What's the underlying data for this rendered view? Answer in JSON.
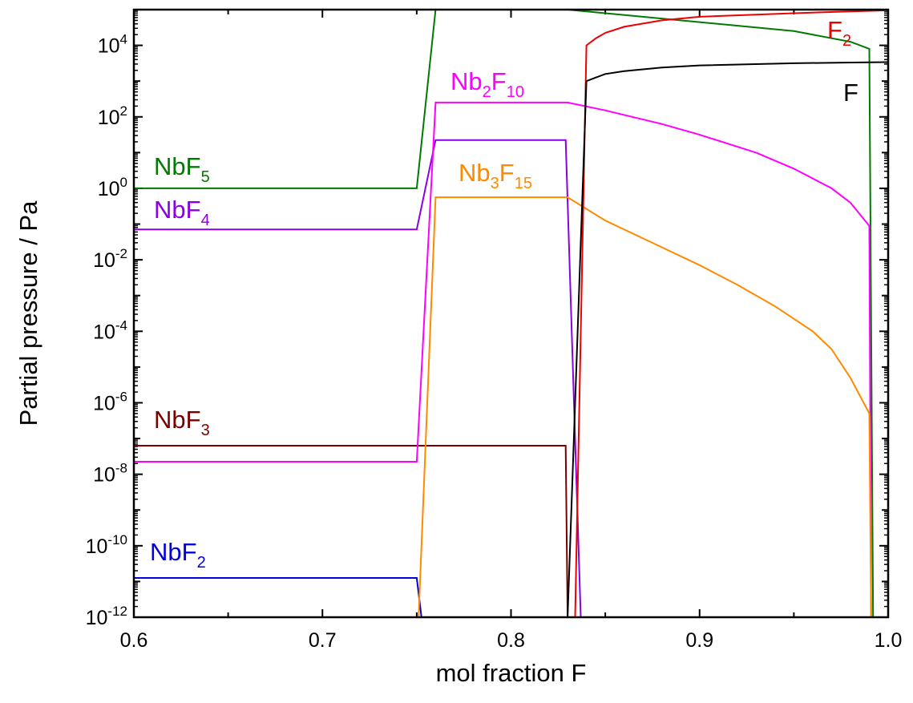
{
  "chart_data": {
    "type": "line",
    "title": "",
    "xlabel": "mol fraction F",
    "ylabel": "Partial pressure / Pa",
    "xlim": [
      0.6,
      1.0
    ],
    "ylim_exponent": [
      -12,
      5
    ],
    "y_scale": "log",
    "x_ticks": [
      "0.6",
      "0.7",
      "0.8",
      "0.9",
      "1.0"
    ],
    "y_ticks": [
      {
        "base": "10",
        "exp": "-12"
      },
      {
        "base": "10",
        "exp": "-10"
      },
      {
        "base": "10",
        "exp": "-8"
      },
      {
        "base": "10",
        "exp": "-6"
      },
      {
        "base": "10",
        "exp": "-4"
      },
      {
        "base": "10",
        "exp": "-2"
      },
      {
        "base": "10",
        "exp": "0"
      },
      {
        "base": "10",
        "exp": "2"
      },
      {
        "base": "10",
        "exp": "4"
      }
    ],
    "grid": false,
    "series": [
      {
        "name": "NbF5",
        "label": {
          "main": "NbF",
          "sub": "5"
        },
        "color": "#007a00",
        "points": [
          [
            0.6,
            0.0
          ],
          [
            0.75,
            0.0
          ],
          [
            0.76,
            5.0
          ],
          [
            0.83,
            5.0
          ],
          [
            0.85,
            4.9
          ],
          [
            0.9,
            4.65
          ],
          [
            0.95,
            4.4
          ],
          [
            0.98,
            4.1
          ],
          [
            0.99,
            3.9
          ],
          [
            0.992,
            -12.0
          ]
        ]
      },
      {
        "name": "NbF4",
        "label": {
          "main": "NbF",
          "sub": "4"
        },
        "color": "#8a00e6",
        "points": [
          [
            0.6,
            -1.15
          ],
          [
            0.75,
            -1.15
          ],
          [
            0.76,
            1.35
          ],
          [
            0.829,
            1.35
          ],
          [
            0.837,
            -12.0
          ]
        ]
      },
      {
        "name": "NbF3",
        "label": {
          "main": "NbF",
          "sub": "3"
        },
        "color": "#7a0000",
        "points": [
          [
            0.6,
            -7.2
          ],
          [
            0.829,
            -7.2
          ],
          [
            0.83,
            -12.0
          ]
        ]
      },
      {
        "name": "NbF2",
        "label": {
          "main": "NbF",
          "sub": "2"
        },
        "color": "#0000dd",
        "points": [
          [
            0.6,
            -10.9
          ],
          [
            0.75,
            -10.9
          ],
          [
            0.7525,
            -12.0
          ]
        ]
      },
      {
        "name": "Nb2F10",
        "label": {
          "main": "Nb",
          "sub": "2",
          "main2": "F",
          "sub2": "10"
        },
        "color": "#ff00ff",
        "points": [
          [
            0.6,
            -7.65
          ],
          [
            0.75,
            -7.65
          ],
          [
            0.76,
            2.4
          ],
          [
            0.83,
            2.4
          ],
          [
            0.85,
            2.18
          ],
          [
            0.88,
            1.8
          ],
          [
            0.9,
            1.5
          ],
          [
            0.93,
            1.0
          ],
          [
            0.95,
            0.55
          ],
          [
            0.97,
            0.0
          ],
          [
            0.98,
            -0.4
          ],
          [
            0.99,
            -1.05
          ],
          [
            0.991,
            -12.0
          ]
        ]
      },
      {
        "name": "Nb3F15",
        "label": {
          "main": "Nb",
          "sub": "3",
          "main2": "F",
          "sub2": "15"
        },
        "color": "#ff8a00",
        "points": [
          [
            0.751,
            -12.0
          ],
          [
            0.76,
            -0.25
          ],
          [
            0.83,
            -0.25
          ],
          [
            0.85,
            -0.9
          ],
          [
            0.88,
            -1.65
          ],
          [
            0.9,
            -2.15
          ],
          [
            0.92,
            -2.7
          ],
          [
            0.94,
            -3.3
          ],
          [
            0.96,
            -4.0
          ],
          [
            0.97,
            -4.5
          ],
          [
            0.98,
            -5.3
          ],
          [
            0.99,
            -6.3
          ],
          [
            0.991,
            -12.0
          ]
        ]
      },
      {
        "name": "F2",
        "label": {
          "main": "F",
          "sub": "2"
        },
        "color": "#ee0000",
        "points": [
          [
            0.834,
            -12.0
          ],
          [
            0.84,
            4.0
          ],
          [
            0.845,
            4.2
          ],
          [
            0.85,
            4.35
          ],
          [
            0.86,
            4.52
          ],
          [
            0.88,
            4.7
          ],
          [
            0.9,
            4.8
          ],
          [
            0.95,
            4.9
          ],
          [
            0.98,
            4.95
          ],
          [
            1.0,
            4.98
          ]
        ]
      },
      {
        "name": "F",
        "label": {
          "main": "F"
        },
        "color": "#000000",
        "points": [
          [
            0.83,
            -12.0
          ],
          [
            0.84,
            3.0
          ],
          [
            0.845,
            3.1
          ],
          [
            0.85,
            3.2
          ],
          [
            0.86,
            3.28
          ],
          [
            0.88,
            3.38
          ],
          [
            0.9,
            3.44
          ],
          [
            0.95,
            3.5
          ],
          [
            0.98,
            3.52
          ],
          [
            1.0,
            3.53
          ]
        ]
      }
    ]
  }
}
